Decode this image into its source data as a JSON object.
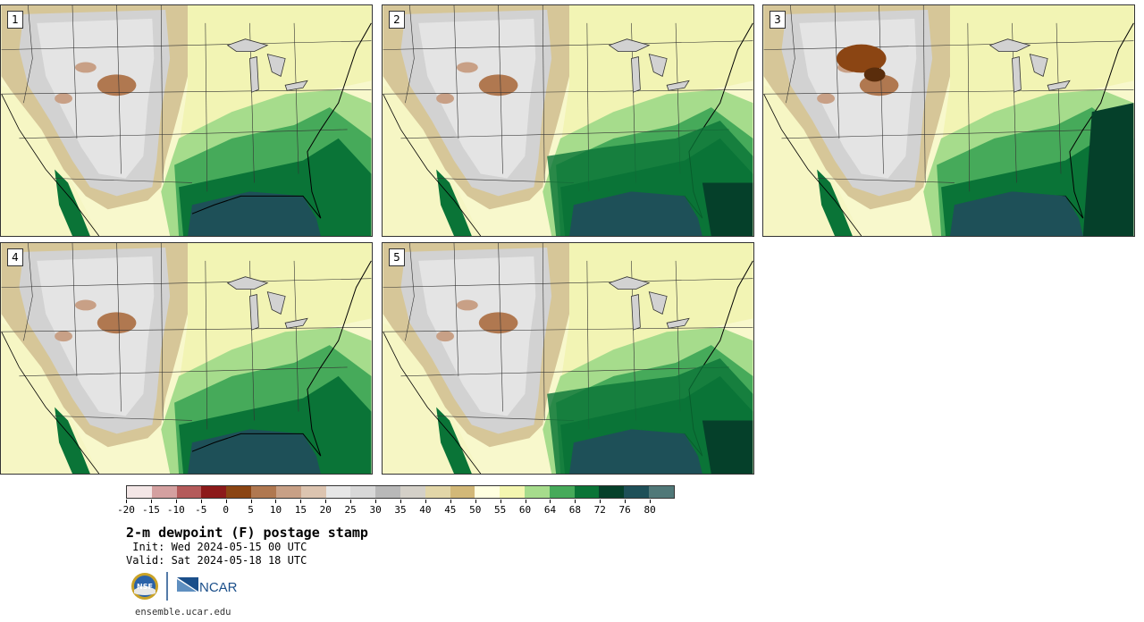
{
  "panels": [
    {
      "label": "1"
    },
    {
      "label": "2"
    },
    {
      "label": "3"
    },
    {
      "label": "4"
    },
    {
      "label": "5"
    }
  ],
  "colorbar": {
    "colors": [
      "#f3e6e6",
      "#d4a0a0",
      "#b45a5a",
      "#8c1a1a",
      "#8b4513",
      "#b07850",
      "#c8a086",
      "#dcc4b0",
      "#e6e6e6",
      "#d8d8d8",
      "#b8b8b8",
      "#d4d0c8",
      "#e2d6a8",
      "#d2b878",
      "#ffffe0",
      "#f4f6b0",
      "#a6dc8c",
      "#46aa5a",
      "#0a7437",
      "#05402a",
      "#1e5058",
      "#507878"
    ],
    "tick_labels": [
      "-20",
      "-15",
      "-10",
      "-5",
      "0",
      "5",
      "10",
      "15",
      "20",
      "25",
      "30",
      "35",
      "40",
      "45",
      "50",
      "55",
      "60",
      "64",
      "68",
      "72",
      "76",
      "80"
    ]
  },
  "title": "2-m dewpoint (F) postage stamp",
  "init": " Init: Wed 2024-05-15 00 UTC",
  "valid": "Valid: Sat 2024-05-18 18 UTC",
  "logos": {
    "nsf": "NSF",
    "ncar": "NCAR"
  },
  "site": "ensemble.ucar.edu"
}
